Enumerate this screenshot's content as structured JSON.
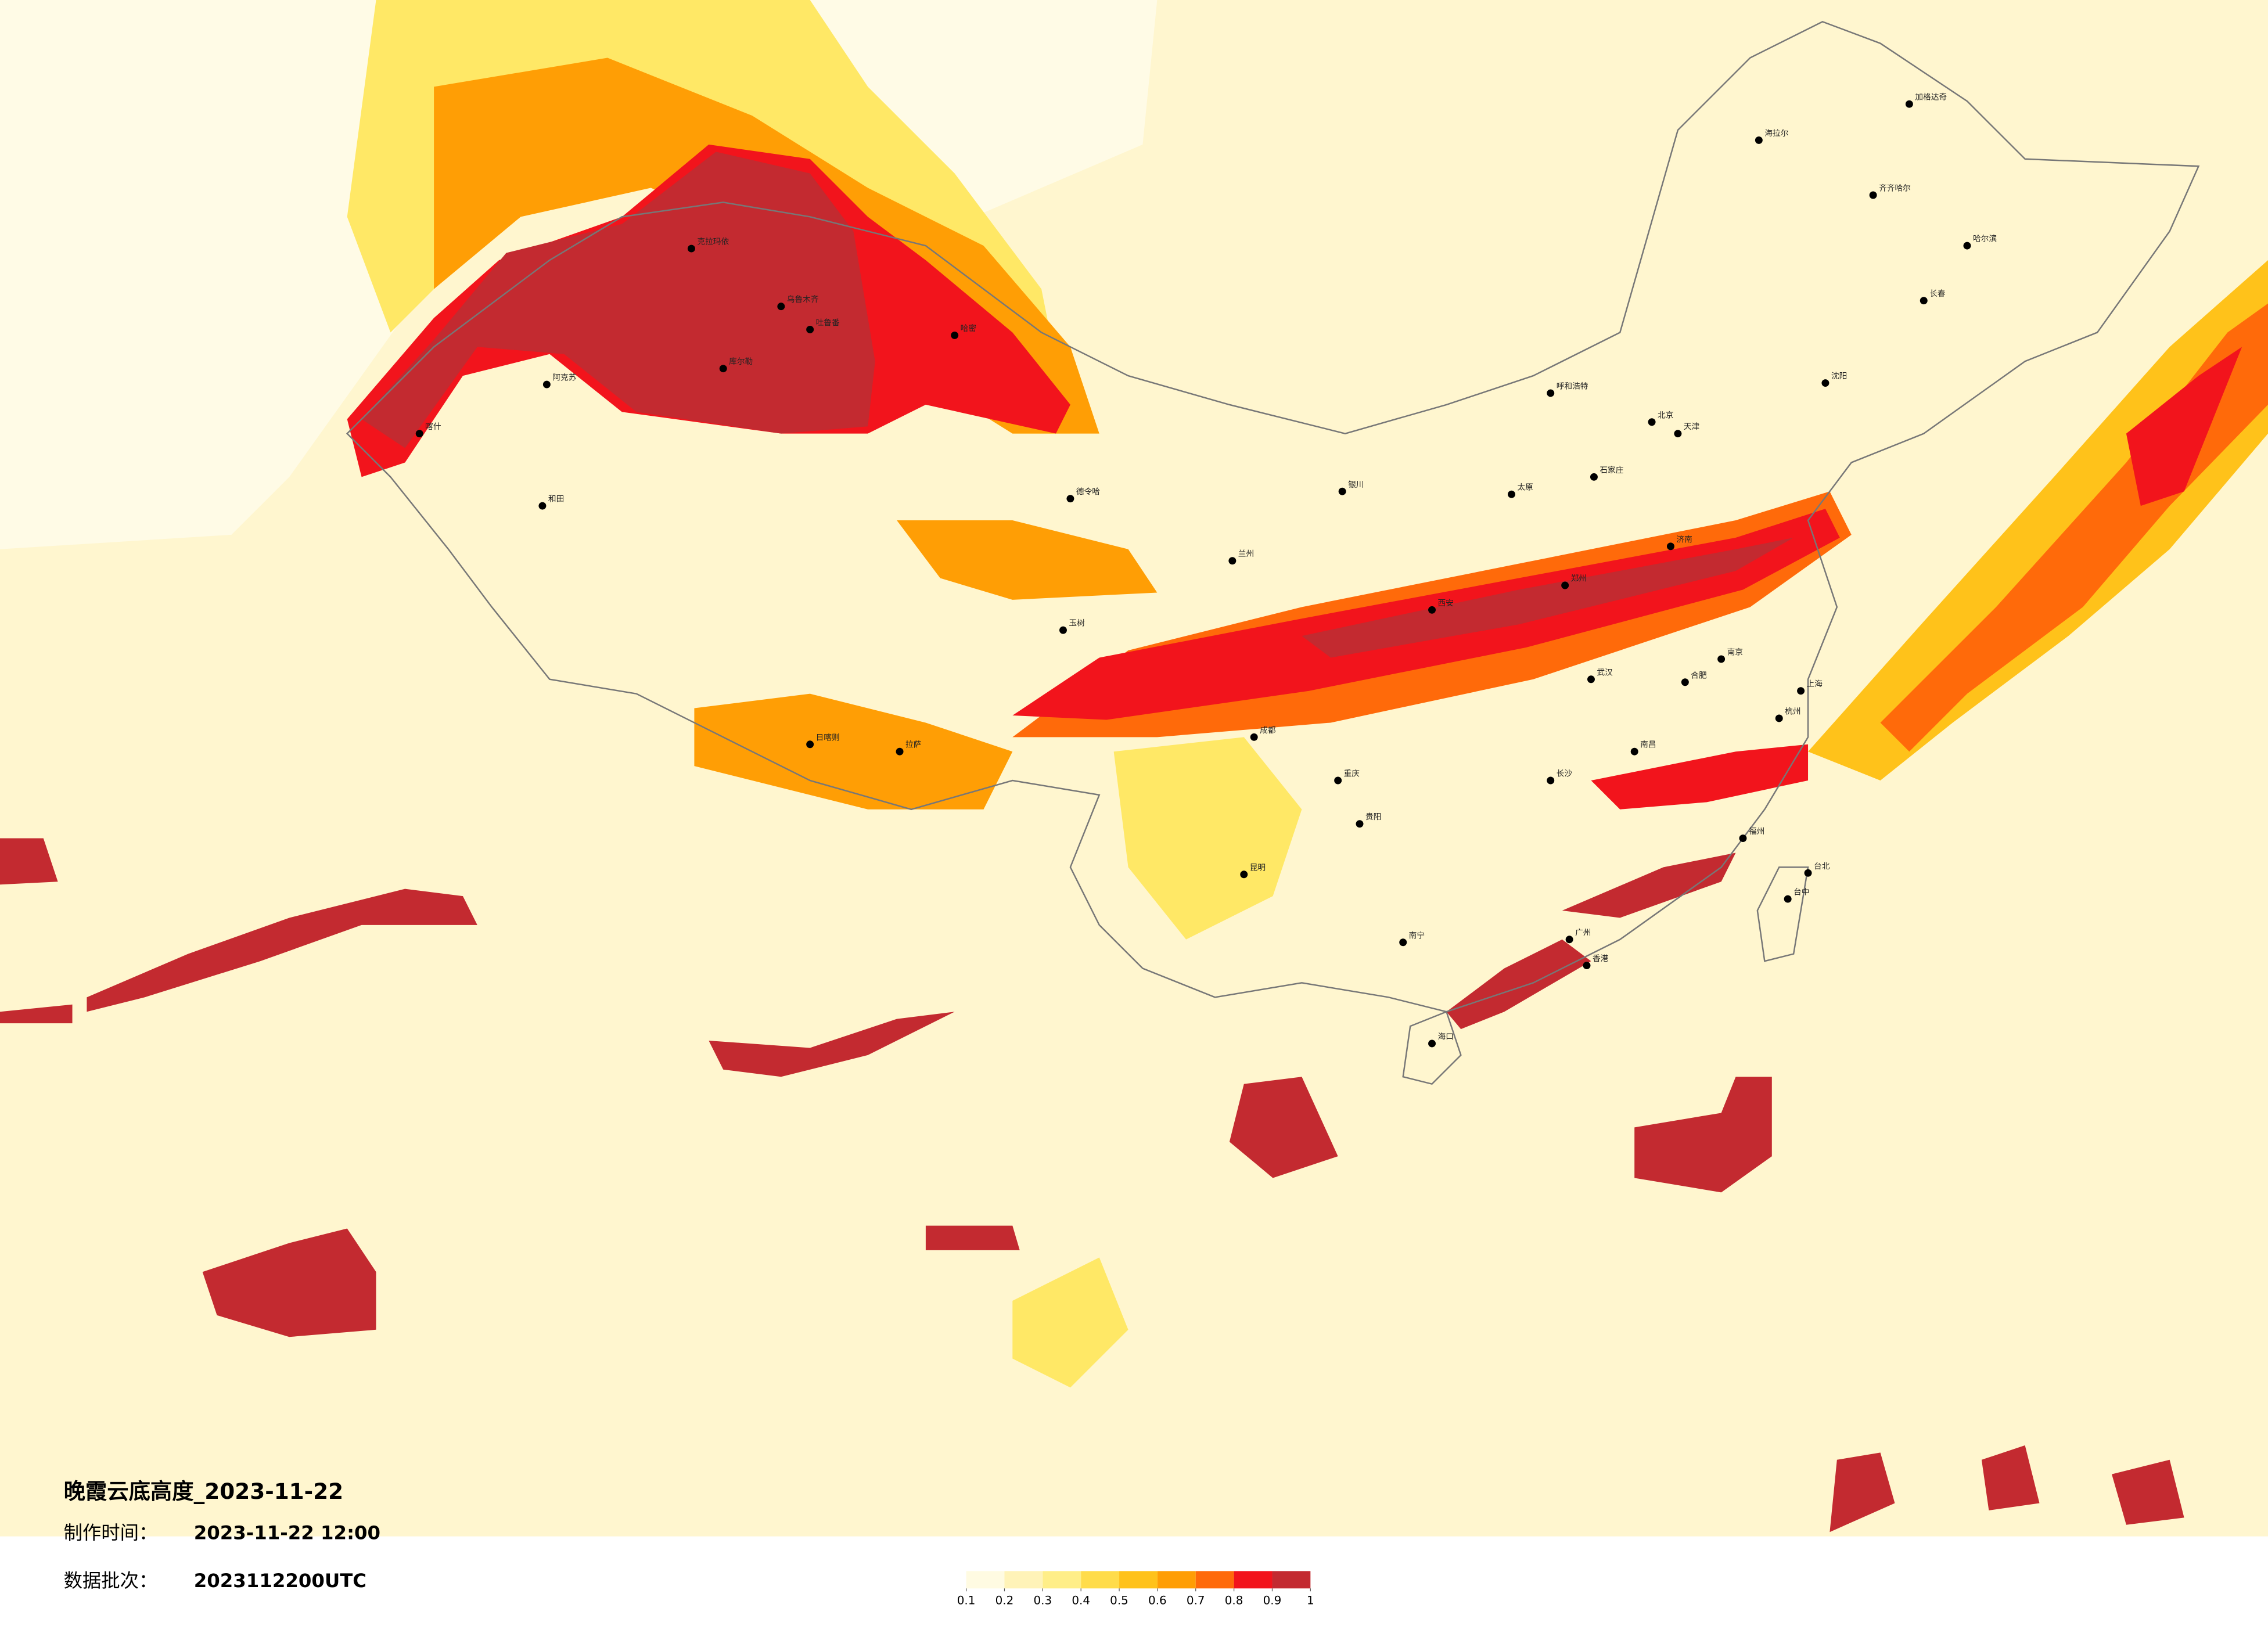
{
  "header": {
    "title": "晚霞云底高度_2023-11-22",
    "made_label": "制作时间：",
    "made_value": "2023-11-22 12:00",
    "batch_label": "数据批次：",
    "batch_value": "2023112200UTC"
  },
  "legend": {
    "ticks": [
      0.1,
      0.2,
      0.3,
      0.4,
      0.5,
      0.6,
      0.7,
      0.8,
      0.9,
      1
    ],
    "colors": [
      "#fffbe2",
      "#fff3b8",
      "#ffee88",
      "#ffdc4a",
      "#ffc21a",
      "#ff9e05",
      "#ff6a0a",
      "#f2141c",
      "#c32a30"
    ]
  },
  "cities": [
    "喀什",
    "和田",
    "阿克苏",
    "克拉玛依",
    "库尔勒",
    "吐鲁番",
    "乌鲁木齐",
    "哈密",
    "德令哈",
    "玉树",
    "日喀则",
    "拉萨",
    "海拉尔",
    "加格达奇",
    "齐齐哈尔",
    "哈尔滨",
    "长春",
    "沈阳",
    "呼和浩特",
    "北京",
    "天津",
    "石家庄",
    "太原",
    "济南",
    "银川",
    "兰州",
    "西安",
    "郑州",
    "南京",
    "合肥",
    "上海",
    "杭州",
    "武汉",
    "成都",
    "重庆",
    "长沙",
    "南昌",
    "福州",
    "贵阳",
    "昆明",
    "南宁",
    "广州",
    "香港",
    "海口",
    "台北",
    "台中"
  ]
}
